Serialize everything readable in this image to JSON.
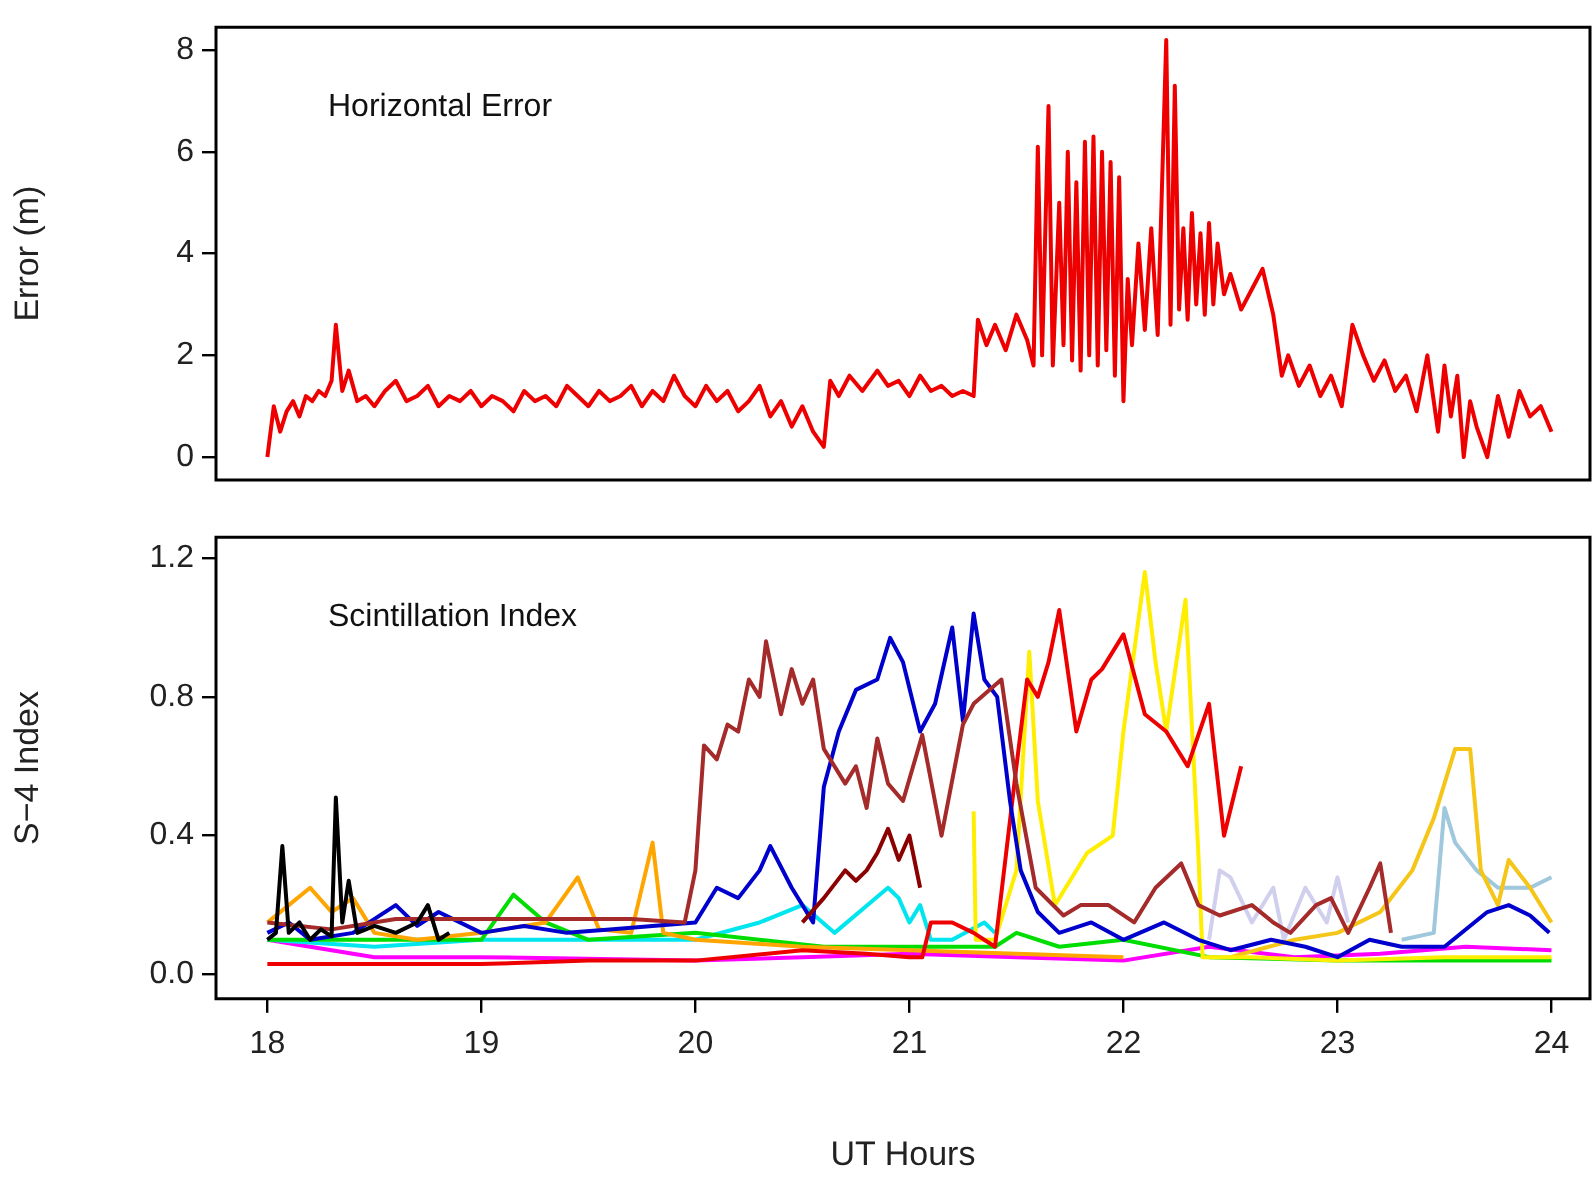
{
  "chart_data": [
    {
      "type": "line",
      "ylabel": "Error (m)",
      "annotations": [
        "Horizontal Error"
      ],
      "color": "#ee0000",
      "xlim": [
        17.76,
        24.18
      ],
      "ylim": [
        -0.45,
        8.45
      ],
      "yticks": [
        0,
        2,
        4,
        6,
        8
      ],
      "tick_labels": "y",
      "grid": false,
      "x": [
        18.0,
        18.03,
        18.06,
        18.09,
        18.12,
        18.15,
        18.18,
        18.21,
        18.24,
        18.27,
        18.3,
        18.32,
        18.35,
        18.38,
        18.42,
        18.46,
        18.5,
        18.55,
        18.6,
        18.65,
        18.7,
        18.75,
        18.8,
        18.85,
        18.9,
        18.95,
        19.0,
        19.05,
        19.1,
        19.15,
        19.2,
        19.25,
        19.3,
        19.35,
        19.4,
        19.45,
        19.5,
        19.55,
        19.6,
        19.65,
        19.7,
        19.75,
        19.8,
        19.85,
        19.9,
        19.95,
        20.0,
        20.05,
        20.1,
        20.15,
        20.2,
        20.25,
        20.3,
        20.35,
        20.4,
        20.45,
        20.5,
        20.55,
        20.6,
        20.63,
        20.67,
        20.72,
        20.78,
        20.85,
        20.9,
        20.95,
        21.0,
        21.05,
        21.1,
        21.15,
        21.2,
        21.25,
        21.3,
        21.32,
        21.36,
        21.4,
        21.45,
        21.5,
        21.55,
        21.58,
        21.6,
        21.62,
        21.65,
        21.67,
        21.7,
        21.72,
        21.74,
        21.76,
        21.78,
        21.8,
        21.82,
        21.84,
        21.86,
        21.88,
        21.9,
        21.92,
        21.94,
        21.96,
        21.98,
        22.0,
        22.02,
        22.04,
        22.07,
        22.1,
        22.13,
        22.16,
        22.2,
        22.22,
        22.24,
        22.26,
        22.28,
        22.3,
        22.32,
        22.34,
        22.36,
        22.38,
        22.4,
        22.42,
        22.44,
        22.47,
        22.5,
        22.55,
        22.6,
        22.65,
        22.7,
        22.74,
        22.77,
        22.82,
        22.87,
        22.92,
        22.97,
        23.02,
        23.07,
        23.12,
        23.17,
        23.22,
        23.27,
        23.32,
        23.37,
        23.42,
        23.47,
        23.5,
        23.53,
        23.56,
        23.59,
        23.62,
        23.65,
        23.7,
        23.75,
        23.8,
        23.85,
        23.9,
        23.95,
        24.0
      ],
      "values": [
        0.0,
        1.0,
        0.5,
        0.9,
        1.1,
        0.8,
        1.2,
        1.1,
        1.3,
        1.2,
        1.5,
        2.6,
        1.3,
        1.7,
        1.1,
        1.2,
        1.0,
        1.3,
        1.5,
        1.1,
        1.2,
        1.4,
        1.0,
        1.2,
        1.1,
        1.3,
        1.0,
        1.2,
        1.1,
        0.9,
        1.3,
        1.1,
        1.2,
        1.0,
        1.4,
        1.2,
        1.0,
        1.3,
        1.1,
        1.2,
        1.4,
        1.0,
        1.3,
        1.1,
        1.6,
        1.2,
        1.0,
        1.4,
        1.1,
        1.3,
        0.9,
        1.1,
        1.4,
        0.8,
        1.1,
        0.6,
        1.0,
        0.5,
        0.2,
        1.5,
        1.2,
        1.6,
        1.3,
        1.7,
        1.4,
        1.5,
        1.2,
        1.6,
        1.3,
        1.4,
        1.2,
        1.3,
        1.2,
        2.7,
        2.2,
        2.6,
        2.1,
        2.8,
        2.3,
        1.8,
        6.1,
        2.0,
        6.9,
        1.8,
        5.0,
        2.2,
        6.0,
        1.9,
        5.4,
        1.7,
        6.2,
        2.0,
        6.3,
        1.8,
        6.0,
        2.1,
        5.8,
        1.6,
        5.5,
        1.1,
        3.5,
        2.2,
        4.2,
        2.5,
        4.5,
        2.4,
        8.2,
        2.6,
        7.3,
        2.9,
        4.5,
        2.7,
        4.8,
        3.0,
        4.4,
        2.8,
        4.6,
        3.0,
        4.2,
        3.2,
        3.6,
        2.9,
        3.3,
        3.7,
        2.8,
        1.6,
        2.0,
        1.4,
        1.8,
        1.2,
        1.6,
        1.0,
        2.6,
        2.0,
        1.5,
        1.9,
        1.3,
        1.6,
        0.9,
        2.0,
        0.5,
        1.8,
        0.8,
        1.6,
        0.0,
        1.1,
        0.6,
        0.0,
        1.2,
        0.4,
        1.3,
        0.8,
        1.0,
        0.5
      ]
    },
    {
      "type": "line",
      "ylabel": "S−4 Index",
      "xlabel": "UT Hours",
      "annotations": [
        "Scintillation Index"
      ],
      "xlim": [
        17.76,
        24.18
      ],
      "xticks": [
        18,
        19,
        20,
        21,
        22,
        23,
        24
      ],
      "ylim": [
        -0.07,
        1.26
      ],
      "yticks": [
        {
          "value": 0,
          "label": "0.0"
        },
        {
          "value": 0.4,
          "label": "0.4"
        },
        {
          "value": 0.8,
          "label": "0.8"
        },
        {
          "value": 1.2,
          "label": "1.2"
        }
      ],
      "grid": false,
      "series": [
        {
          "color": "#000000",
          "x": [
            18.0,
            18.04,
            18.07,
            18.1,
            18.15,
            18.2,
            18.25,
            18.3,
            18.32,
            18.35,
            18.38,
            18.42,
            18.5,
            18.6,
            18.7,
            18.75,
            18.8,
            18.85
          ],
          "values": [
            0.1,
            0.12,
            0.37,
            0.12,
            0.15,
            0.1,
            0.13,
            0.11,
            0.51,
            0.15,
            0.27,
            0.12,
            0.14,
            0.12,
            0.15,
            0.2,
            0.1,
            0.12
          ]
        },
        {
          "color": "#a52a2a",
          "x": [
            18.0,
            18.3,
            18.6,
            18.9,
            19.3,
            19.7,
            19.95,
            20.0,
            20.04,
            20.1,
            20.15,
            20.2,
            20.25,
            20.3,
            20.33,
            20.4,
            20.45,
            20.5,
            20.55,
            20.6,
            20.7,
            20.75,
            20.8,
            20.85,
            20.9,
            20.97,
            21.06,
            21.15,
            21.25,
            21.3,
            21.43,
            21.5,
            21.59,
            21.72,
            21.8,
            21.93,
            22.05,
            22.15,
            22.27,
            22.35,
            22.45,
            22.6,
            22.7,
            22.78,
            22.9,
            22.97,
            23.05,
            23.15,
            23.2,
            23.25
          ],
          "values": [
            0.15,
            0.13,
            0.16,
            0.16,
            0.16,
            0.16,
            0.15,
            0.3,
            0.66,
            0.62,
            0.72,
            0.7,
            0.85,
            0.8,
            0.96,
            0.75,
            0.88,
            0.78,
            0.85,
            0.65,
            0.55,
            0.6,
            0.48,
            0.68,
            0.55,
            0.5,
            0.69,
            0.4,
            0.72,
            0.78,
            0.85,
            0.55,
            0.25,
            0.17,
            0.2,
            0.2,
            0.15,
            0.25,
            0.32,
            0.2,
            0.17,
            0.2,
            0.15,
            0.12,
            0.2,
            0.22,
            0.12,
            0.25,
            0.32,
            0.12
          ]
        },
        {
          "color": "#8b0000",
          "x": [
            20.5,
            20.6,
            20.7,
            20.75,
            20.8,
            20.85,
            20.9,
            20.95,
            21.0,
            21.05
          ],
          "values": [
            0.15,
            0.22,
            0.3,
            0.27,
            0.3,
            0.35,
            0.42,
            0.33,
            0.4,
            0.25
          ]
        },
        {
          "color": "#0000cd",
          "x": [
            18.0,
            18.1,
            18.2,
            18.4,
            18.6,
            18.7,
            18.8,
            19.0,
            19.2,
            19.4,
            19.6,
            19.8,
            20.0,
            20.1,
            20.2,
            20.3,
            20.35,
            20.45,
            20.55,
            20.6,
            20.67,
            20.75,
            20.85,
            20.91,
            20.97,
            21.05,
            21.12,
            21.2,
            21.25,
            21.3,
            21.35,
            21.41,
            21.47,
            21.52,
            21.6,
            21.7,
            21.85,
            22.0,
            22.19,
            22.35,
            22.5,
            22.69,
            22.85,
            23.0,
            23.15,
            23.3,
            23.5,
            23.7,
            23.8,
            23.9,
            23.99
          ],
          "values": [
            0.12,
            0.15,
            0.1,
            0.12,
            0.2,
            0.14,
            0.18,
            0.12,
            0.14,
            0.12,
            0.13,
            0.14,
            0.15,
            0.25,
            0.22,
            0.3,
            0.37,
            0.25,
            0.15,
            0.54,
            0.7,
            0.82,
            0.85,
            0.97,
            0.9,
            0.7,
            0.78,
            1.0,
            0.73,
            1.04,
            0.85,
            0.8,
            0.5,
            0.3,
            0.18,
            0.12,
            0.15,
            0.1,
            0.15,
            0.1,
            0.07,
            0.1,
            0.08,
            0.05,
            0.1,
            0.08,
            0.08,
            0.18,
            0.2,
            0.17,
            0.12
          ]
        },
        {
          "color": "#ee0000",
          "x": [
            18.0,
            18.5,
            19.0,
            19.5,
            20.0,
            20.5,
            20.8,
            21.0,
            21.06,
            21.1,
            21.2,
            21.3,
            21.4,
            21.5,
            21.55,
            21.6,
            21.65,
            21.7,
            21.78,
            21.85,
            21.9,
            22.0,
            22.1,
            22.2,
            22.3,
            22.4,
            22.47,
            22.55
          ],
          "values": [
            0.03,
            0.03,
            0.03,
            0.04,
            0.04,
            0.07,
            0.06,
            0.05,
            0.05,
            0.15,
            0.15,
            0.12,
            0.08,
            0.6,
            0.85,
            0.8,
            0.9,
            1.05,
            0.7,
            0.85,
            0.88,
            0.98,
            0.75,
            0.7,
            0.6,
            0.78,
            0.4,
            0.6
          ]
        },
        {
          "color": "#ffee00",
          "x": [
            21.3,
            21.31,
            21.4,
            21.5,
            21.56,
            21.6,
            21.68,
            21.83,
            21.95,
            22.0,
            22.1,
            22.15,
            22.2,
            22.29,
            22.35,
            22.37,
            22.6,
            23.0,
            23.5,
            24.0
          ],
          "values": [
            0.47,
            0.1,
            0.1,
            0.3,
            0.93,
            0.5,
            0.2,
            0.35,
            0.4,
            0.7,
            1.16,
            0.9,
            0.7,
            1.08,
            0.35,
            0.05,
            0.05,
            0.04,
            0.05,
            0.05
          ]
        },
        {
          "color": "#ffa500",
          "x": [
            18.0,
            18.1,
            18.2,
            18.3,
            18.4,
            18.5,
            18.7,
            19.0,
            19.3,
            19.45,
            19.55,
            19.7,
            19.8,
            19.85,
            20.0,
            20.5,
            21.0,
            21.5,
            22.0
          ],
          "values": [
            0.15,
            0.2,
            0.25,
            0.18,
            0.22,
            0.12,
            0.1,
            0.12,
            0.15,
            0.28,
            0.13,
            0.12,
            0.38,
            0.12,
            0.1,
            0.08,
            0.07,
            0.06,
            0.05
          ]
        },
        {
          "color": "#f5c518",
          "x": [
            22.5,
            22.8,
            23.0,
            23.2,
            23.35,
            23.45,
            23.55,
            23.62,
            23.67,
            23.75,
            23.8,
            23.9,
            24.0
          ],
          "values": [
            0.05,
            0.1,
            0.12,
            0.18,
            0.3,
            0.45,
            0.65,
            0.65,
            0.3,
            0.2,
            0.33,
            0.25,
            0.15
          ]
        },
        {
          "color": "#00dd00",
          "x": [
            18.0,
            18.5,
            19.0,
            19.15,
            19.3,
            19.5,
            20.0,
            20.6,
            21.0,
            21.4,
            21.5,
            21.7,
            22.0,
            22.4,
            23.0,
            24.0
          ],
          "values": [
            0.1,
            0.1,
            0.1,
            0.23,
            0.15,
            0.1,
            0.12,
            0.08,
            0.08,
            0.08,
            0.12,
            0.08,
            0.1,
            0.05,
            0.04,
            0.04
          ]
        },
        {
          "color": "#00e5ee",
          "x": [
            18.0,
            18.5,
            19.0,
            19.5,
            20.0,
            20.3,
            20.5,
            20.65,
            20.9,
            20.95,
            21.0,
            21.05,
            21.1,
            21.2,
            21.35,
            21.4
          ],
          "values": [
            0.1,
            0.08,
            0.1,
            0.1,
            0.1,
            0.15,
            0.2,
            0.12,
            0.25,
            0.22,
            0.15,
            0.2,
            0.1,
            0.1,
            0.15,
            0.12
          ]
        },
        {
          "color": "#ff00ff",
          "x": [
            18.0,
            18.5,
            19.0,
            20.0,
            20.5,
            21.0,
            21.5,
            22.0,
            22.4,
            22.8,
            23.2,
            23.6,
            24.0
          ],
          "values": [
            0.1,
            0.05,
            0.05,
            0.04,
            0.05,
            0.06,
            0.05,
            0.04,
            0.08,
            0.05,
            0.06,
            0.08,
            0.07
          ]
        },
        {
          "color": "#d0d0ee",
          "x": [
            22.4,
            22.45,
            22.5,
            22.6,
            22.7,
            22.75,
            22.85,
            22.95,
            23.0,
            23.05
          ],
          "values": [
            0.1,
            0.3,
            0.28,
            0.15,
            0.25,
            0.1,
            0.25,
            0.15,
            0.28,
            0.15
          ]
        },
        {
          "color": "#9fc8dc",
          "x": [
            23.3,
            23.45,
            23.5,
            23.55,
            23.65,
            23.75,
            23.9,
            24.0
          ],
          "values": [
            0.1,
            0.12,
            0.48,
            0.38,
            0.3,
            0.25,
            0.25,
            0.28
          ]
        }
      ]
    }
  ]
}
